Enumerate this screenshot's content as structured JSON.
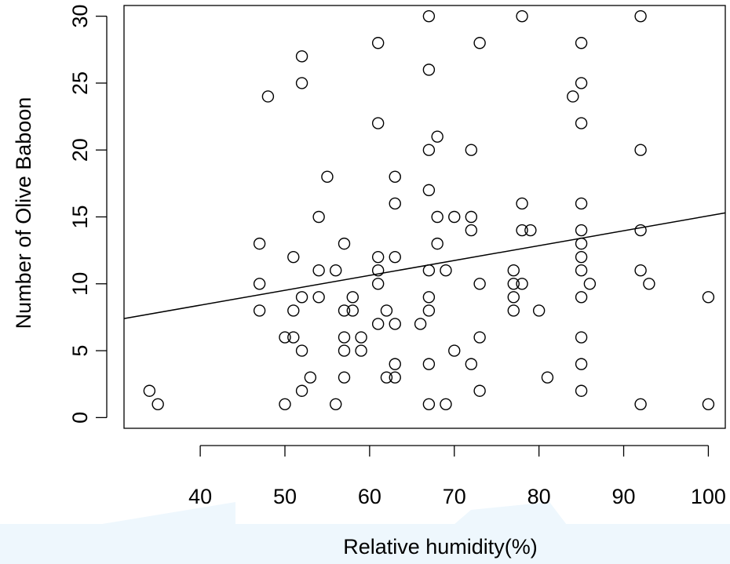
{
  "chart_data": {
    "type": "scatter",
    "title": "",
    "xlabel": "Relative humidity(%)",
    "ylabel": "Number of Olive Baboon",
    "xlim": [
      31,
      102
    ],
    "ylim": [
      -0.8,
      30.8
    ],
    "xticks": [
      40,
      50,
      60,
      70,
      80,
      90,
      100
    ],
    "yticks": [
      0,
      5,
      10,
      15,
      20,
      25,
      30
    ],
    "grid": false,
    "legend": "none",
    "marker_color": "#000000",
    "line_color": "#000000",
    "points": [
      {
        "x": 34,
        "y": 2
      },
      {
        "x": 35,
        "y": 1
      },
      {
        "x": 47,
        "y": 13
      },
      {
        "x": 47,
        "y": 10
      },
      {
        "x": 47,
        "y": 8
      },
      {
        "x": 48,
        "y": 24
      },
      {
        "x": 50,
        "y": 6
      },
      {
        "x": 50,
        "y": 1
      },
      {
        "x": 51,
        "y": 12
      },
      {
        "x": 51,
        "y": 8
      },
      {
        "x": 51,
        "y": 6
      },
      {
        "x": 52,
        "y": 27
      },
      {
        "x": 52,
        "y": 25
      },
      {
        "x": 52,
        "y": 9
      },
      {
        "x": 52,
        "y": 5
      },
      {
        "x": 52,
        "y": 2
      },
      {
        "x": 53,
        "y": 3
      },
      {
        "x": 54,
        "y": 15
      },
      {
        "x": 54,
        "y": 11
      },
      {
        "x": 54,
        "y": 9
      },
      {
        "x": 55,
        "y": 18
      },
      {
        "x": 56,
        "y": 11
      },
      {
        "x": 56,
        "y": 1
      },
      {
        "x": 57,
        "y": 13
      },
      {
        "x": 57,
        "y": 8
      },
      {
        "x": 57,
        "y": 6
      },
      {
        "x": 57,
        "y": 5
      },
      {
        "x": 57,
        "y": 3
      },
      {
        "x": 58,
        "y": 9
      },
      {
        "x": 58,
        "y": 8
      },
      {
        "x": 59,
        "y": 6
      },
      {
        "x": 59,
        "y": 5
      },
      {
        "x": 61,
        "y": 28
      },
      {
        "x": 61,
        "y": 22
      },
      {
        "x": 61,
        "y": 12
      },
      {
        "x": 61,
        "y": 11
      },
      {
        "x": 61,
        "y": 10
      },
      {
        "x": 61,
        "y": 7
      },
      {
        "x": 62,
        "y": 8
      },
      {
        "x": 62,
        "y": 3
      },
      {
        "x": 63,
        "y": 18
      },
      {
        "x": 63,
        "y": 16
      },
      {
        "x": 63,
        "y": 12
      },
      {
        "x": 63,
        "y": 7
      },
      {
        "x": 63,
        "y": 4
      },
      {
        "x": 63,
        "y": 3
      },
      {
        "x": 66,
        "y": 7
      },
      {
        "x": 67,
        "y": 30
      },
      {
        "x": 67,
        "y": 26
      },
      {
        "x": 67,
        "y": 20
      },
      {
        "x": 67,
        "y": 17
      },
      {
        "x": 67,
        "y": 11
      },
      {
        "x": 67,
        "y": 9
      },
      {
        "x": 67,
        "y": 8
      },
      {
        "x": 67,
        "y": 4
      },
      {
        "x": 67,
        "y": 1
      },
      {
        "x": 68,
        "y": 21
      },
      {
        "x": 68,
        "y": 15
      },
      {
        "x": 68,
        "y": 13
      },
      {
        "x": 69,
        "y": 11
      },
      {
        "x": 69,
        "y": 1
      },
      {
        "x": 70,
        "y": 15
      },
      {
        "x": 70,
        "y": 5
      },
      {
        "x": 72,
        "y": 20
      },
      {
        "x": 72,
        "y": 15
      },
      {
        "x": 72,
        "y": 14
      },
      {
        "x": 72,
        "y": 4
      },
      {
        "x": 73,
        "y": 28
      },
      {
        "x": 73,
        "y": 10
      },
      {
        "x": 73,
        "y": 6
      },
      {
        "x": 73,
        "y": 2
      },
      {
        "x": 77,
        "y": 11
      },
      {
        "x": 77,
        "y": 10
      },
      {
        "x": 77,
        "y": 9
      },
      {
        "x": 77,
        "y": 8
      },
      {
        "x": 78,
        "y": 30
      },
      {
        "x": 78,
        "y": 16
      },
      {
        "x": 78,
        "y": 14
      },
      {
        "x": 78,
        "y": 10
      },
      {
        "x": 79,
        "y": 14
      },
      {
        "x": 80,
        "y": 8
      },
      {
        "x": 81,
        "y": 3
      },
      {
        "x": 84,
        "y": 24
      },
      {
        "x": 85,
        "y": 28
      },
      {
        "x": 85,
        "y": 25
      },
      {
        "x": 85,
        "y": 22
      },
      {
        "x": 85,
        "y": 16
      },
      {
        "x": 85,
        "y": 14
      },
      {
        "x": 85,
        "y": 13
      },
      {
        "x": 85,
        "y": 12
      },
      {
        "x": 85,
        "y": 11
      },
      {
        "x": 85,
        "y": 9
      },
      {
        "x": 85,
        "y": 6
      },
      {
        "x": 85,
        "y": 4
      },
      {
        "x": 85,
        "y": 2
      },
      {
        "x": 86,
        "y": 10
      },
      {
        "x": 92,
        "y": 30
      },
      {
        "x": 92,
        "y": 20
      },
      {
        "x": 92,
        "y": 14
      },
      {
        "x": 92,
        "y": 11
      },
      {
        "x": 92,
        "y": 1
      },
      {
        "x": 93,
        "y": 10
      },
      {
        "x": 100,
        "y": 9
      },
      {
        "x": 100,
        "y": 1
      }
    ],
    "fit_line": {
      "x": [
        31,
        102
      ],
      "y": [
        7.4,
        15.3
      ]
    }
  }
}
